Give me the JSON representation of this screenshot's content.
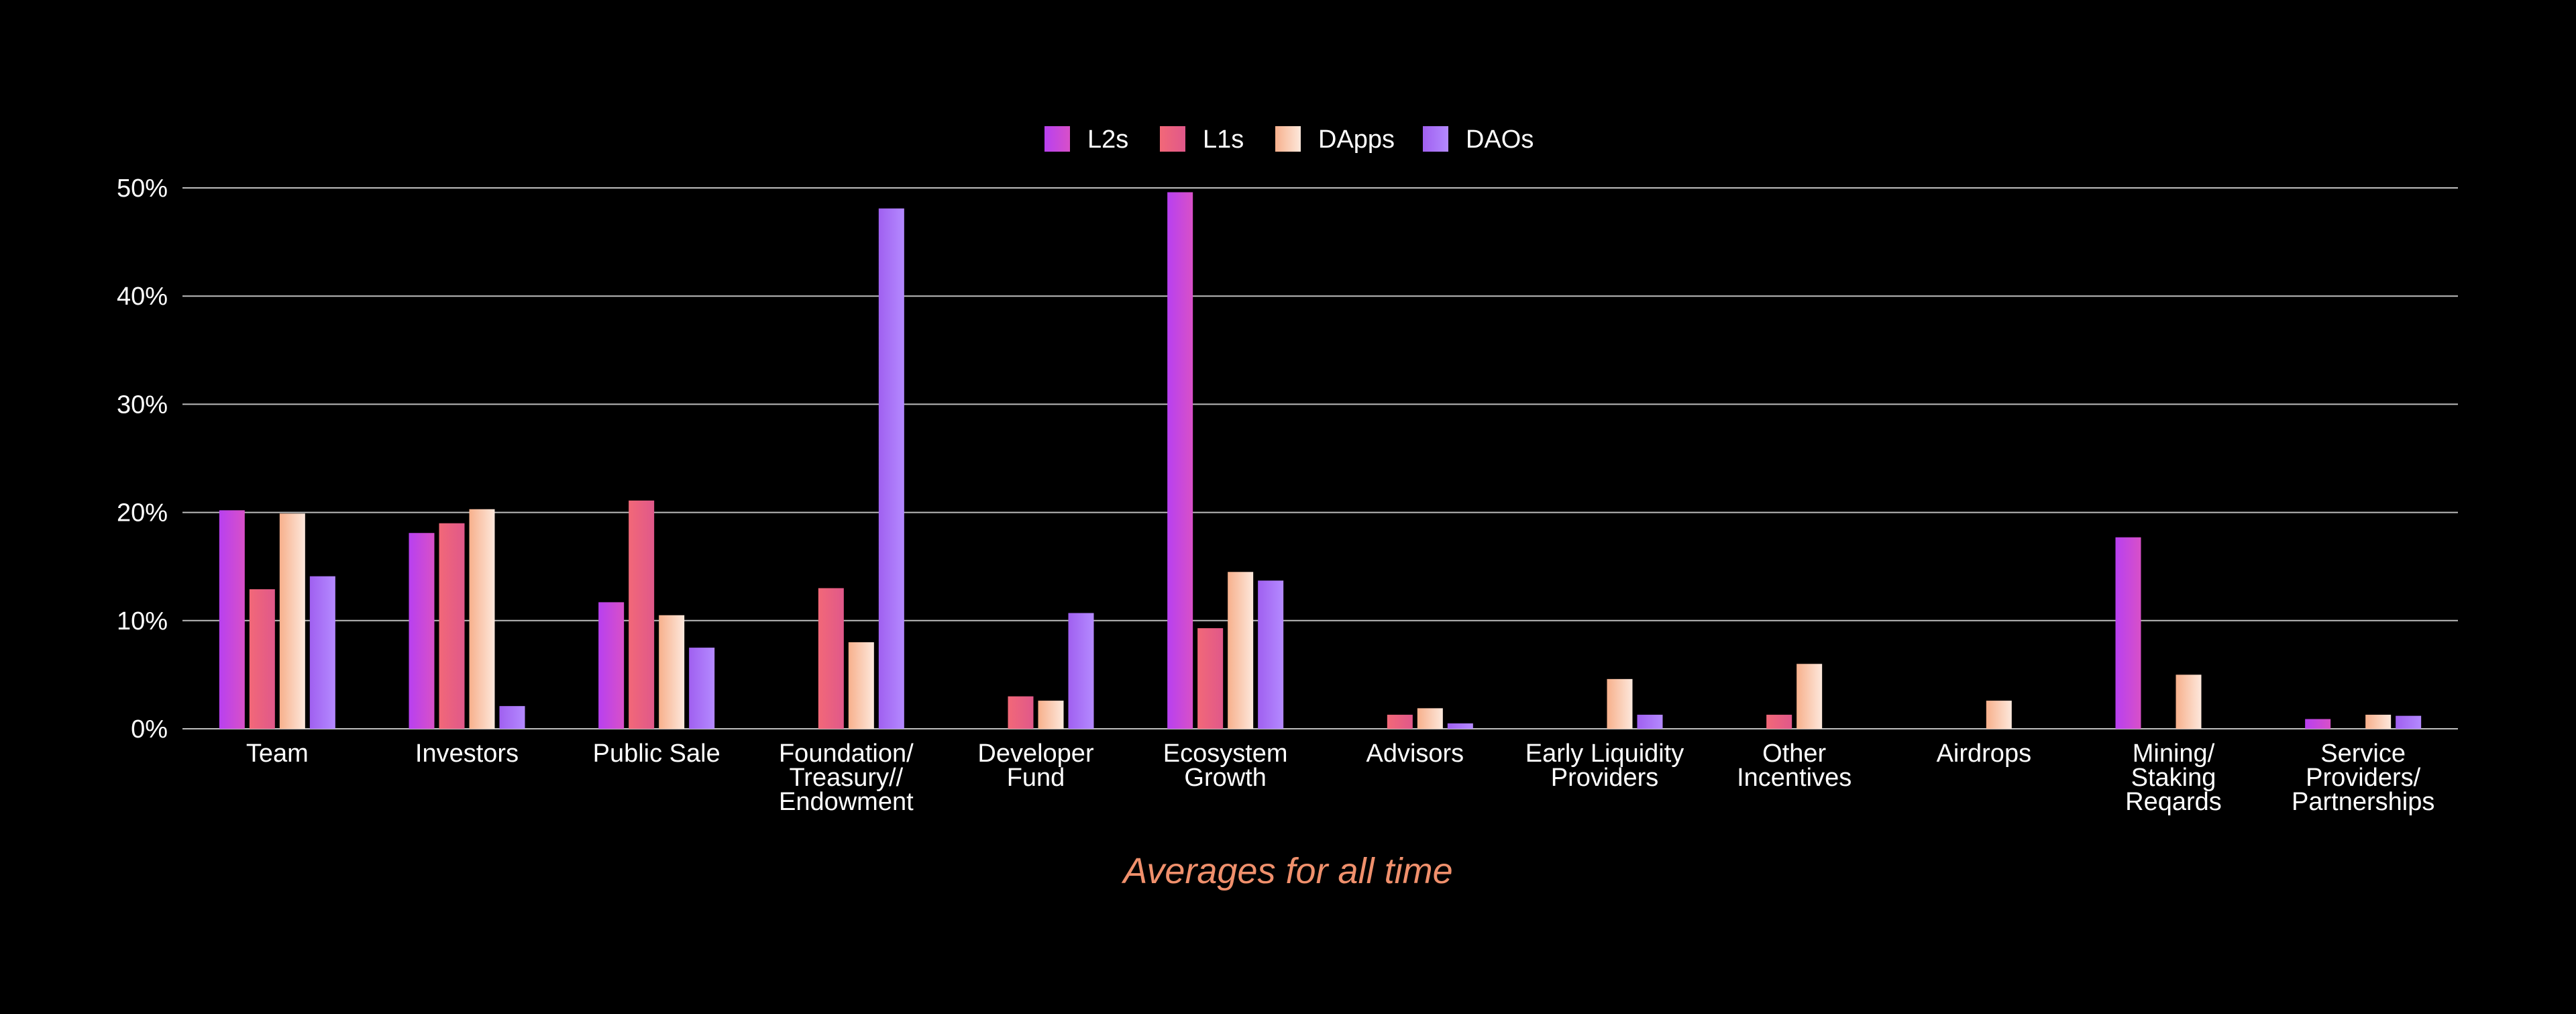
{
  "chart_data": {
    "type": "bar",
    "caption": "Averages for all time",
    "categories": [
      [
        "Team"
      ],
      [
        "Investors"
      ],
      [
        "Public Sale"
      ],
      [
        "Foundation/",
        "Treasury//",
        "Endowment"
      ],
      [
        "Developer",
        "Fund"
      ],
      [
        "Ecosystem",
        "Growth"
      ],
      [
        "Advisors"
      ],
      [
        "Early Liquidity",
        "Providers"
      ],
      [
        "Other",
        "Incentives"
      ],
      [
        "Airdrops"
      ],
      [
        "Mining/",
        "Staking",
        "Reqards"
      ],
      [
        "Service",
        "Providers/",
        "Partnerships"
      ]
    ],
    "series": [
      {
        "name": "L2s",
        "color_top": "#b840f0",
        "color_bottom": "#d850c8",
        "values": [
          20.2,
          18.1,
          11.7,
          null,
          null,
          49.6,
          null,
          null,
          null,
          null,
          17.7,
          0.9
        ]
      },
      {
        "name": "L1s",
        "color_top": "#f26878",
        "color_bottom": "#e0588a",
        "values": [
          12.9,
          19.0,
          21.1,
          13.0,
          3.0,
          9.3,
          1.3,
          null,
          1.3,
          null,
          null,
          null
        ]
      },
      {
        "name": "DApps",
        "color_top": "#f7b08c",
        "color_bottom": "#fde8dc",
        "values": [
          19.9,
          20.3,
          10.5,
          8.0,
          2.6,
          14.5,
          1.9,
          4.6,
          6.0,
          2.6,
          5.0,
          1.3
        ]
      },
      {
        "name": "DAOs",
        "color_top": "#a060f0",
        "color_bottom": "#b48aff",
        "values": [
          14.1,
          2.1,
          7.5,
          48.1,
          10.7,
          13.7,
          0.5,
          1.3,
          null,
          null,
          null,
          1.2
        ]
      }
    ],
    "ylim": [
      0,
      50
    ],
    "yticks": [
      "0%",
      "10%",
      "20%",
      "30%",
      "40%",
      "50%"
    ],
    "ytick_values": [
      0,
      10,
      20,
      30,
      40,
      50
    ],
    "grid": true,
    "legend_position": "top-center",
    "background": "#000000",
    "gridline_color": "#bdbdbd",
    "text_color": "#ffffff",
    "caption_color": "#f0906c",
    "dao_foundation_color": "#f5906a"
  }
}
